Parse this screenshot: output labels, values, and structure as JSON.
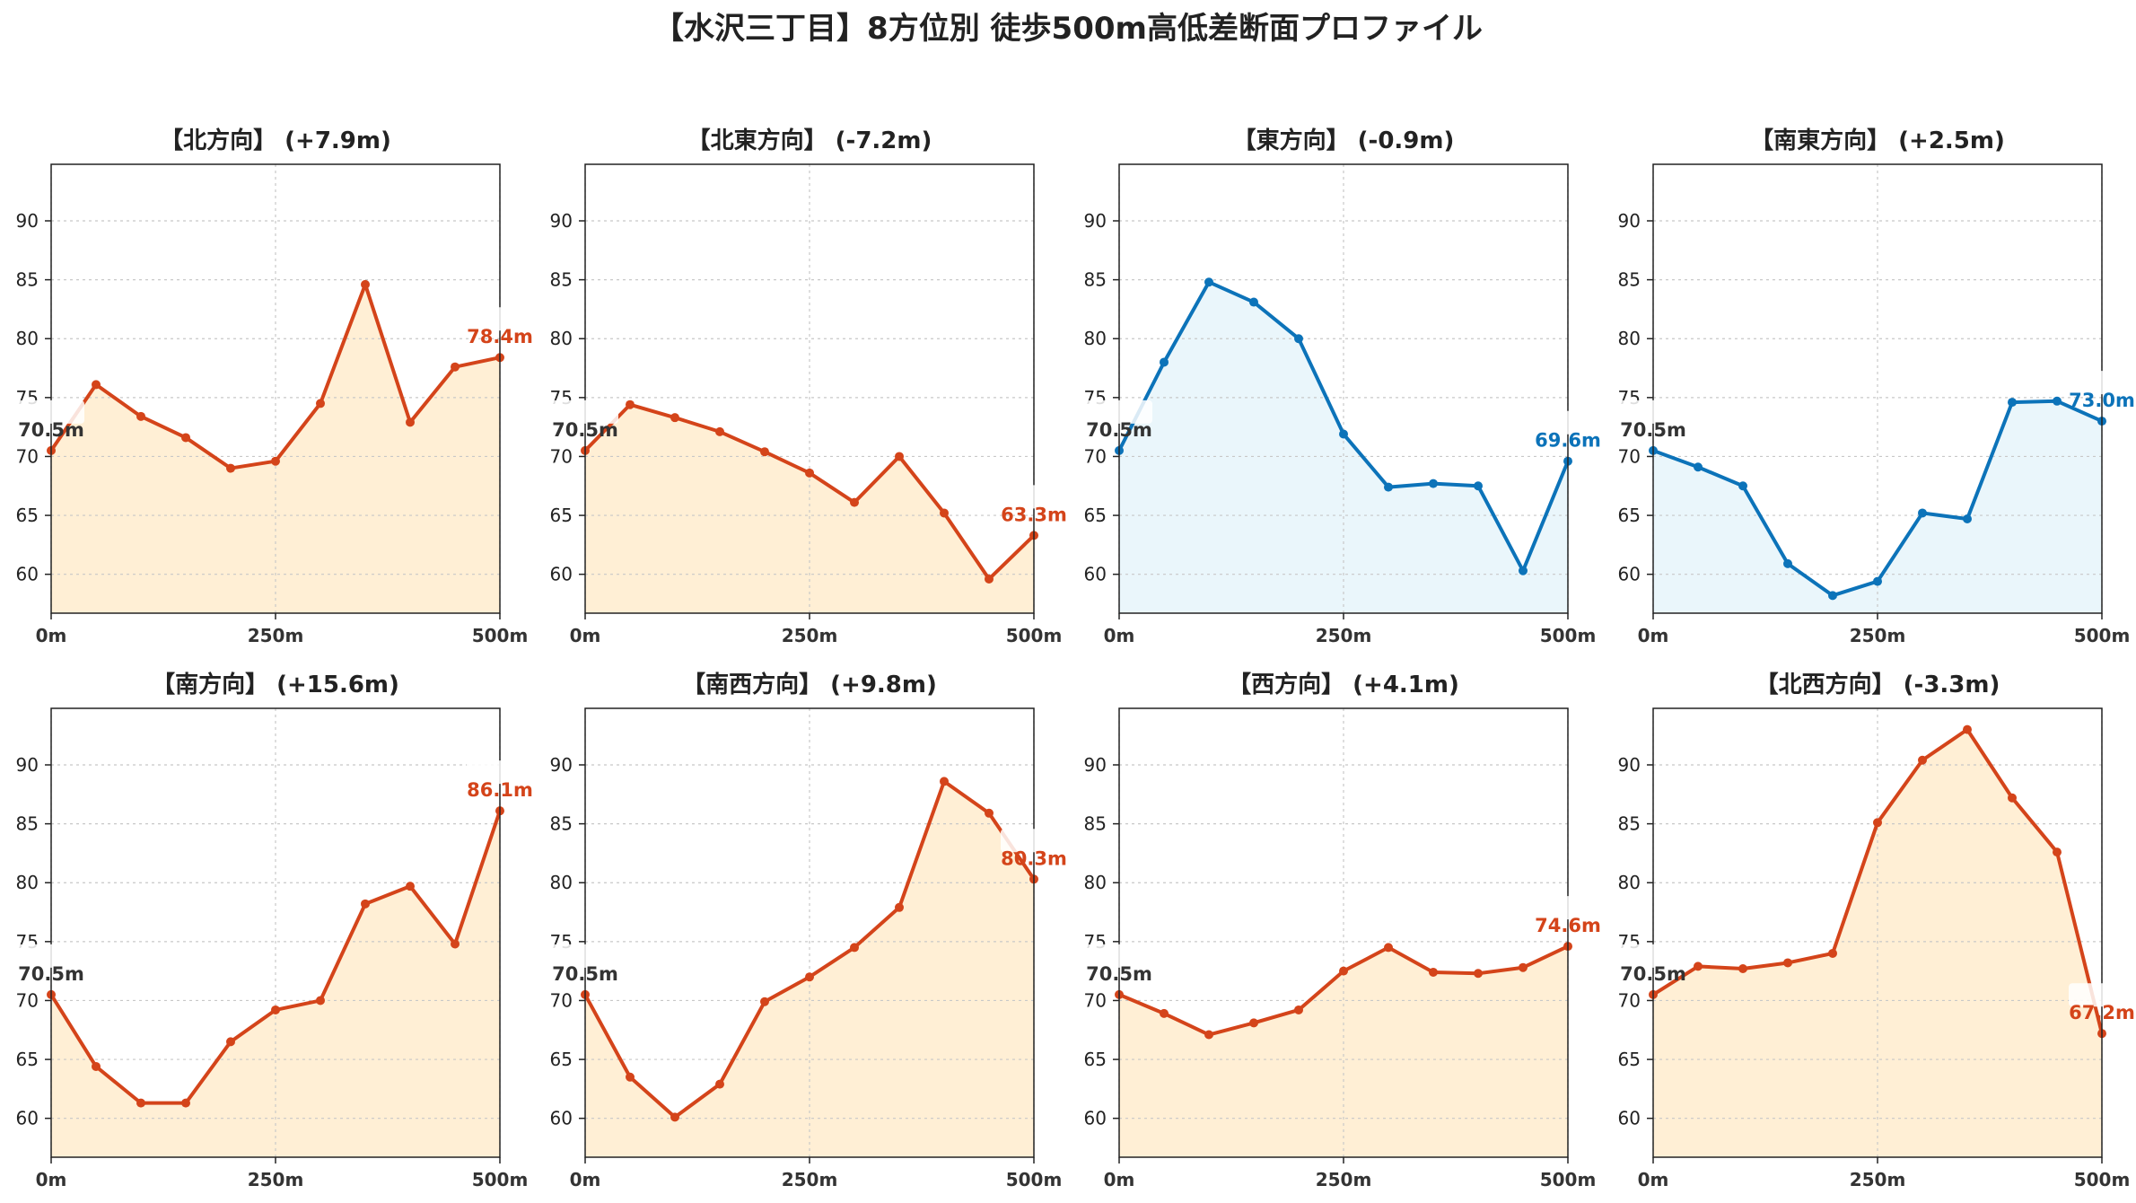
{
  "title": "【水沢三丁目】8方位別 徒歩500m高低差断面プロファイル",
  "colors": {
    "up": "#d4441a",
    "up_fill": "#ffefd5",
    "down": "#0c73b9",
    "down_fill": "#eaf6fb",
    "start_label": "#333333"
  },
  "chart_data": [
    {
      "type": "line",
      "title": "【北方向】 (+7.9m)",
      "trend": "up",
      "xlim": [
        0,
        500
      ],
      "ylim": [
        56.7,
        94.8
      ],
      "x_ticks": [
        "0m",
        "250m",
        "500m"
      ],
      "y_ticks": [
        60,
        65,
        70,
        75,
        80,
        85,
        90
      ],
      "grid": true,
      "x": [
        0,
        50,
        100,
        150,
        200,
        250,
        300,
        350,
        400,
        450,
        500
      ],
      "y": [
        70.5,
        76.1,
        73.4,
        71.6,
        69.0,
        69.6,
        74.5,
        84.6,
        72.9,
        77.6,
        78.4
      ],
      "start_label": "70.5m",
      "end_label": "78.4m"
    },
    {
      "type": "line",
      "title": "【北東方向】 (-7.2m)",
      "trend": "up",
      "xlim": [
        0,
        500
      ],
      "ylim": [
        56.7,
        94.8
      ],
      "x_ticks": [
        "0m",
        "250m",
        "500m"
      ],
      "y_ticks": [
        60,
        65,
        70,
        75,
        80,
        85,
        90
      ],
      "grid": true,
      "x": [
        0,
        50,
        100,
        150,
        200,
        250,
        300,
        350,
        400,
        450,
        500
      ],
      "y": [
        70.5,
        74.4,
        73.3,
        72.1,
        70.4,
        68.6,
        66.1,
        70.0,
        65.2,
        59.6,
        63.3
      ],
      "start_label": "70.5m",
      "end_label": "63.3m"
    },
    {
      "type": "line",
      "title": "【東方向】 (-0.9m)",
      "trend": "down",
      "xlim": [
        0,
        500
      ],
      "ylim": [
        56.7,
        94.8
      ],
      "x_ticks": [
        "0m",
        "250m",
        "500m"
      ],
      "y_ticks": [
        60,
        65,
        70,
        75,
        80,
        85,
        90
      ],
      "grid": true,
      "x": [
        0,
        50,
        100,
        150,
        200,
        250,
        300,
        350,
        400,
        450,
        500
      ],
      "y": [
        70.5,
        78.0,
        84.8,
        83.1,
        80.0,
        71.9,
        67.4,
        67.7,
        67.5,
        60.3,
        69.6
      ],
      "start_label": "70.5m",
      "end_label": "69.6m"
    },
    {
      "type": "line",
      "title": "【南東方向】 (+2.5m)",
      "trend": "down",
      "xlim": [
        0,
        500
      ],
      "ylim": [
        56.7,
        94.8
      ],
      "x_ticks": [
        "0m",
        "250m",
        "500m"
      ],
      "y_ticks": [
        60,
        65,
        70,
        75,
        80,
        85,
        90
      ],
      "grid": true,
      "x": [
        0,
        50,
        100,
        150,
        200,
        250,
        300,
        350,
        400,
        450,
        500
      ],
      "y": [
        70.5,
        69.1,
        67.5,
        60.9,
        58.2,
        59.4,
        65.2,
        64.7,
        74.6,
        74.7,
        73.0
      ],
      "start_label": "70.5m",
      "end_label": "73.0m"
    },
    {
      "type": "line",
      "title": "【南方向】 (+15.6m)",
      "trend": "up",
      "xlim": [
        0,
        500
      ],
      "ylim": [
        56.7,
        94.8
      ],
      "x_ticks": [
        "0m",
        "250m",
        "500m"
      ],
      "y_ticks": [
        60,
        65,
        70,
        75,
        80,
        85,
        90
      ],
      "grid": true,
      "x": [
        0,
        50,
        100,
        150,
        200,
        250,
        300,
        350,
        400,
        450,
        500
      ],
      "y": [
        70.5,
        64.4,
        61.3,
        61.3,
        66.5,
        69.2,
        70.0,
        78.2,
        79.7,
        74.8,
        86.1
      ],
      "start_label": "70.5m",
      "end_label": "86.1m"
    },
    {
      "type": "line",
      "title": "【南西方向】 (+9.8m)",
      "trend": "up",
      "xlim": [
        0,
        500
      ],
      "ylim": [
        56.7,
        94.8
      ],
      "x_ticks": [
        "0m",
        "250m",
        "500m"
      ],
      "y_ticks": [
        60,
        65,
        70,
        75,
        80,
        85,
        90
      ],
      "grid": true,
      "x": [
        0,
        50,
        100,
        150,
        200,
        250,
        300,
        350,
        400,
        450,
        500
      ],
      "y": [
        70.5,
        63.5,
        60.1,
        62.9,
        69.9,
        72.0,
        74.5,
        77.9,
        88.6,
        85.9,
        80.3
      ],
      "start_label": "70.5m",
      "end_label": "80.3m"
    },
    {
      "type": "line",
      "title": "【西方向】 (+4.1m)",
      "trend": "up",
      "xlim": [
        0,
        500
      ],
      "ylim": [
        56.7,
        94.8
      ],
      "x_ticks": [
        "0m",
        "250m",
        "500m"
      ],
      "y_ticks": [
        60,
        65,
        70,
        75,
        80,
        85,
        90
      ],
      "grid": true,
      "x": [
        0,
        50,
        100,
        150,
        200,
        250,
        300,
        350,
        400,
        450,
        500
      ],
      "y": [
        70.5,
        68.9,
        67.1,
        68.1,
        69.2,
        72.5,
        74.5,
        72.4,
        72.3,
        72.8,
        74.6
      ],
      "start_label": "70.5m",
      "end_label": "74.6m"
    },
    {
      "type": "line",
      "title": "【北西方向】 (-3.3m)",
      "trend": "up",
      "xlim": [
        0,
        500
      ],
      "ylim": [
        56.7,
        94.8
      ],
      "x_ticks": [
        "0m",
        "250m",
        "500m"
      ],
      "y_ticks": [
        60,
        65,
        70,
        75,
        80,
        85,
        90
      ],
      "grid": true,
      "x": [
        0,
        50,
        100,
        150,
        200,
        250,
        300,
        350,
        400,
        450,
        500
      ],
      "y": [
        70.5,
        72.9,
        72.7,
        73.2,
        74.0,
        85.1,
        90.4,
        93.0,
        87.2,
        82.6,
        67.2
      ],
      "start_label": "70.5m",
      "end_label": "67.2m"
    }
  ]
}
